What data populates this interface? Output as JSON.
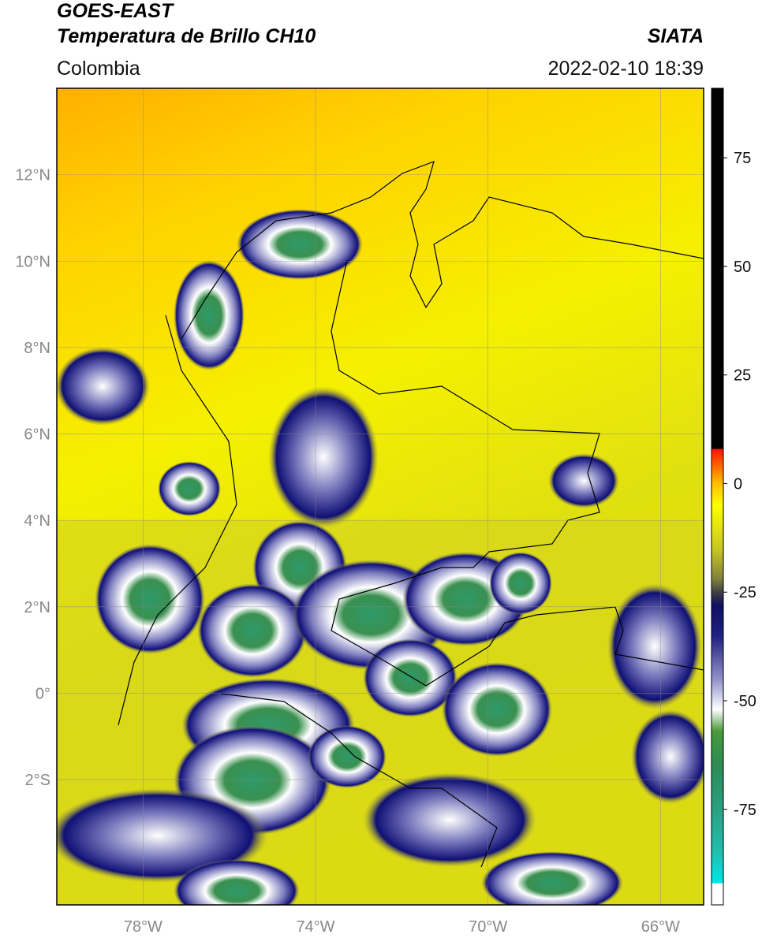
{
  "header": {
    "title": "GOES-EAST",
    "subtitle": "Temperatura de Brillo CH10",
    "source": "SIATA",
    "region": "Colombia",
    "datetime": "2022-02-10 18:39"
  },
  "map": {
    "lon_range": [
      -80,
      -65
    ],
    "lat_range": [
      -4.9,
      14
    ],
    "lat_ticks": [
      {
        "value": 12,
        "label": "12°N"
      },
      {
        "value": 10,
        "label": "10°N"
      },
      {
        "value": 8,
        "label": "8°N"
      },
      {
        "value": 6,
        "label": "6°N"
      },
      {
        "value": 4,
        "label": "4°N"
      },
      {
        "value": 2,
        "label": "2°N"
      },
      {
        "value": 0,
        "label": "0°"
      },
      {
        "value": -2,
        "label": "2°S"
      }
    ],
    "lon_ticks": [
      {
        "value": -78,
        "label": "78°W"
      },
      {
        "value": -74,
        "label": "74°W"
      },
      {
        "value": -70,
        "label": "70°W"
      },
      {
        "value": -66,
        "label": "66°W"
      }
    ]
  },
  "colorbar": {
    "range": [
      -97,
      91
    ],
    "ticks": [
      75,
      50,
      25,
      0,
      -25,
      -50,
      -75
    ],
    "stops": [
      {
        "value": -97,
        "color": "#ffffff"
      },
      {
        "value": -92,
        "color": "#ffffff"
      },
      {
        "value": -92,
        "color": "#00e8e8"
      },
      {
        "value": -85,
        "color": "#20c0b0"
      },
      {
        "value": -75,
        "color": "#2aa080"
      },
      {
        "value": -65,
        "color": "#2e8b57"
      },
      {
        "value": -57,
        "color": "#4a9a3a"
      },
      {
        "value": -52,
        "color": "#ffffff"
      },
      {
        "value": -45,
        "color": "#9090c8"
      },
      {
        "value": -35,
        "color": "#202080"
      },
      {
        "value": -28,
        "color": "#101060"
      },
      {
        "value": -25,
        "color": "#404040"
      },
      {
        "value": -22,
        "color": "#808040"
      },
      {
        "value": -15,
        "color": "#c8c820"
      },
      {
        "value": -5,
        "color": "#ffff00"
      },
      {
        "value": 0,
        "color": "#ffc000"
      },
      {
        "value": 8,
        "color": "#ff1000"
      },
      {
        "value": 8,
        "color": "#000000"
      },
      {
        "value": 91,
        "color": "#000000"
      }
    ]
  }
}
